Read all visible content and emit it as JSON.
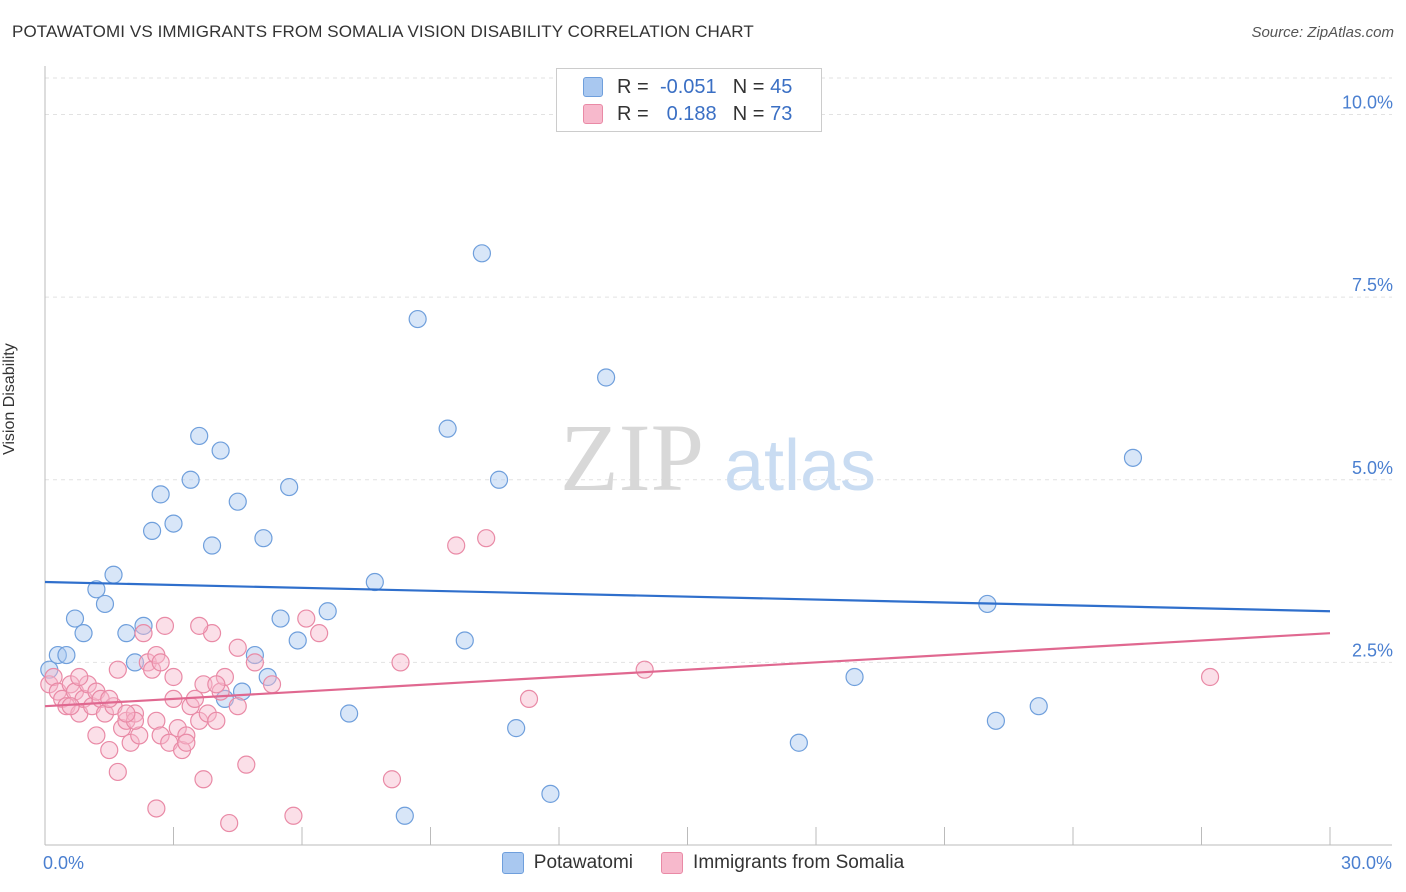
{
  "title": "POTAWATOMI VS IMMIGRANTS FROM SOMALIA VISION DISABILITY CORRELATION CHART",
  "source": "Source: ZipAtlas.com",
  "watermark": {
    "zip": "ZIP",
    "atlas": "atlas"
  },
  "legend": {
    "rows": [
      {
        "r_label": "R = ",
        "r_value": "-0.051",
        "n_label": "N = ",
        "n_value": "45"
      },
      {
        "r_label": "R = ",
        "r_value": "0.188",
        "n_label": "N = ",
        "n_value": "73"
      }
    ]
  },
  "chart_data": {
    "type": "scatter",
    "title": "POTAWATOMI VS IMMIGRANTS FROM SOMALIA VISION DISABILITY CORRELATION CHART",
    "ylabel": "Vision Disability",
    "xlabel": "",
    "xlim": [
      0,
      30
    ],
    "ylim": [
      0,
      10.5
    ],
    "x_tick_labels": [
      {
        "value": 0,
        "label": "0.0%"
      },
      {
        "value": 30,
        "label": "30.0%"
      }
    ],
    "y_tick_labels": [
      {
        "value": 2.5,
        "label": "2.5%"
      },
      {
        "value": 5.0,
        "label": "5.0%"
      },
      {
        "value": 7.5,
        "label": "7.5%"
      },
      {
        "value": 10.0,
        "label": "10.0%"
      }
    ],
    "grid": true,
    "series": [
      {
        "name": "Potawatomi",
        "color": "#a9c8f0",
        "edge": "#6f9fdc",
        "trend": {
          "x": [
            0,
            30
          ],
          "y": [
            3.6,
            3.2
          ],
          "color": "#2f6fcc"
        },
        "points": [
          [
            0.1,
            2.4
          ],
          [
            0.3,
            2.6
          ],
          [
            0.5,
            2.6
          ],
          [
            0.7,
            3.1
          ],
          [
            0.9,
            2.9
          ],
          [
            1.2,
            3.5
          ],
          [
            1.4,
            3.3
          ],
          [
            1.6,
            3.7
          ],
          [
            1.9,
            2.9
          ],
          [
            2.1,
            2.5
          ],
          [
            2.3,
            3.0
          ],
          [
            2.5,
            4.3
          ],
          [
            2.7,
            4.8
          ],
          [
            3.0,
            4.4
          ],
          [
            3.4,
            5.0
          ],
          [
            3.6,
            5.6
          ],
          [
            3.9,
            4.1
          ],
          [
            4.1,
            5.4
          ],
          [
            4.2,
            2.0
          ],
          [
            4.5,
            4.7
          ],
          [
            4.6,
            2.1
          ],
          [
            4.9,
            2.6
          ],
          [
            5.1,
            4.2
          ],
          [
            5.2,
            2.3
          ],
          [
            5.5,
            3.1
          ],
          [
            5.7,
            4.9
          ],
          [
            5.9,
            2.8
          ],
          [
            6.6,
            3.2
          ],
          [
            7.1,
            1.8
          ],
          [
            7.7,
            3.6
          ],
          [
            8.4,
            0.4
          ],
          [
            8.7,
            7.2
          ],
          [
            9.4,
            5.7
          ],
          [
            9.8,
            2.8
          ],
          [
            10.2,
            8.1
          ],
          [
            10.6,
            5.0
          ],
          [
            11.0,
            1.6
          ],
          [
            11.8,
            0.7
          ],
          [
            13.1,
            6.4
          ],
          [
            17.6,
            1.4
          ],
          [
            18.9,
            2.3
          ],
          [
            22.0,
            3.3
          ],
          [
            22.2,
            1.7
          ],
          [
            23.2,
            1.9
          ],
          [
            25.4,
            5.3
          ]
        ]
      },
      {
        "name": "Immigrants from Somalia",
        "color": "#f7b9cc",
        "edge": "#e98aa6",
        "trend": {
          "x": [
            0,
            30
          ],
          "y": [
            1.9,
            2.9
          ],
          "color": "#e06890"
        },
        "points": [
          [
            0.1,
            2.2
          ],
          [
            0.2,
            2.3
          ],
          [
            0.3,
            2.1
          ],
          [
            0.4,
            2.0
          ],
          [
            0.5,
            1.9
          ],
          [
            0.6,
            2.2
          ],
          [
            0.7,
            2.1
          ],
          [
            0.8,
            1.8
          ],
          [
            0.9,
            2.0
          ],
          [
            1.0,
            2.2
          ],
          [
            1.1,
            1.9
          ],
          [
            1.2,
            2.1
          ],
          [
            1.3,
            2.0
          ],
          [
            1.4,
            1.8
          ],
          [
            1.5,
            1.3
          ],
          [
            1.6,
            1.9
          ],
          [
            1.7,
            2.4
          ],
          [
            1.8,
            1.6
          ],
          [
            1.9,
            1.7
          ],
          [
            2.0,
            1.4
          ],
          [
            2.1,
            1.8
          ],
          [
            2.2,
            1.5
          ],
          [
            2.3,
            2.9
          ],
          [
            2.4,
            2.5
          ],
          [
            2.5,
            2.4
          ],
          [
            2.6,
            1.7
          ],
          [
            2.7,
            1.5
          ],
          [
            2.8,
            3.0
          ],
          [
            2.9,
            1.4
          ],
          [
            3.0,
            2.0
          ],
          [
            3.1,
            1.6
          ],
          [
            3.2,
            1.3
          ],
          [
            3.3,
            1.5
          ],
          [
            3.4,
            1.9
          ],
          [
            3.5,
            2.0
          ],
          [
            3.6,
            1.7
          ],
          [
            3.7,
            2.2
          ],
          [
            3.8,
            1.8
          ],
          [
            3.9,
            2.9
          ],
          [
            4.0,
            1.7
          ],
          [
            4.1,
            2.1
          ],
          [
            4.2,
            2.3
          ],
          [
            4.3,
            0.3
          ],
          [
            4.5,
            2.7
          ],
          [
            4.7,
            1.1
          ],
          [
            4.9,
            2.5
          ],
          [
            5.3,
            2.2
          ],
          [
            5.8,
            0.4
          ],
          [
            6.4,
            2.9
          ],
          [
            8.1,
            0.9
          ],
          [
            8.3,
            2.5
          ],
          [
            9.6,
            4.1
          ],
          [
            10.3,
            4.2
          ],
          [
            11.3,
            2.0
          ],
          [
            14.0,
            2.4
          ],
          [
            27.2,
            2.3
          ],
          [
            2.6,
            0.5
          ],
          [
            3.7,
            0.9
          ],
          [
            1.7,
            1.0
          ],
          [
            1.2,
            1.5
          ],
          [
            2.6,
            2.6
          ],
          [
            4.5,
            1.9
          ],
          [
            3.3,
            1.4
          ],
          [
            2.1,
            1.7
          ],
          [
            0.8,
            2.3
          ],
          [
            1.5,
            2.0
          ],
          [
            3.0,
            2.3
          ],
          [
            4.0,
            2.2
          ],
          [
            6.1,
            3.1
          ],
          [
            3.6,
            3.0
          ],
          [
            1.9,
            1.8
          ],
          [
            2.7,
            2.5
          ],
          [
            0.6,
            1.9
          ]
        ]
      }
    ],
    "bottom_legend": [
      "Potawatomi",
      "Immigrants from Somalia"
    ]
  }
}
